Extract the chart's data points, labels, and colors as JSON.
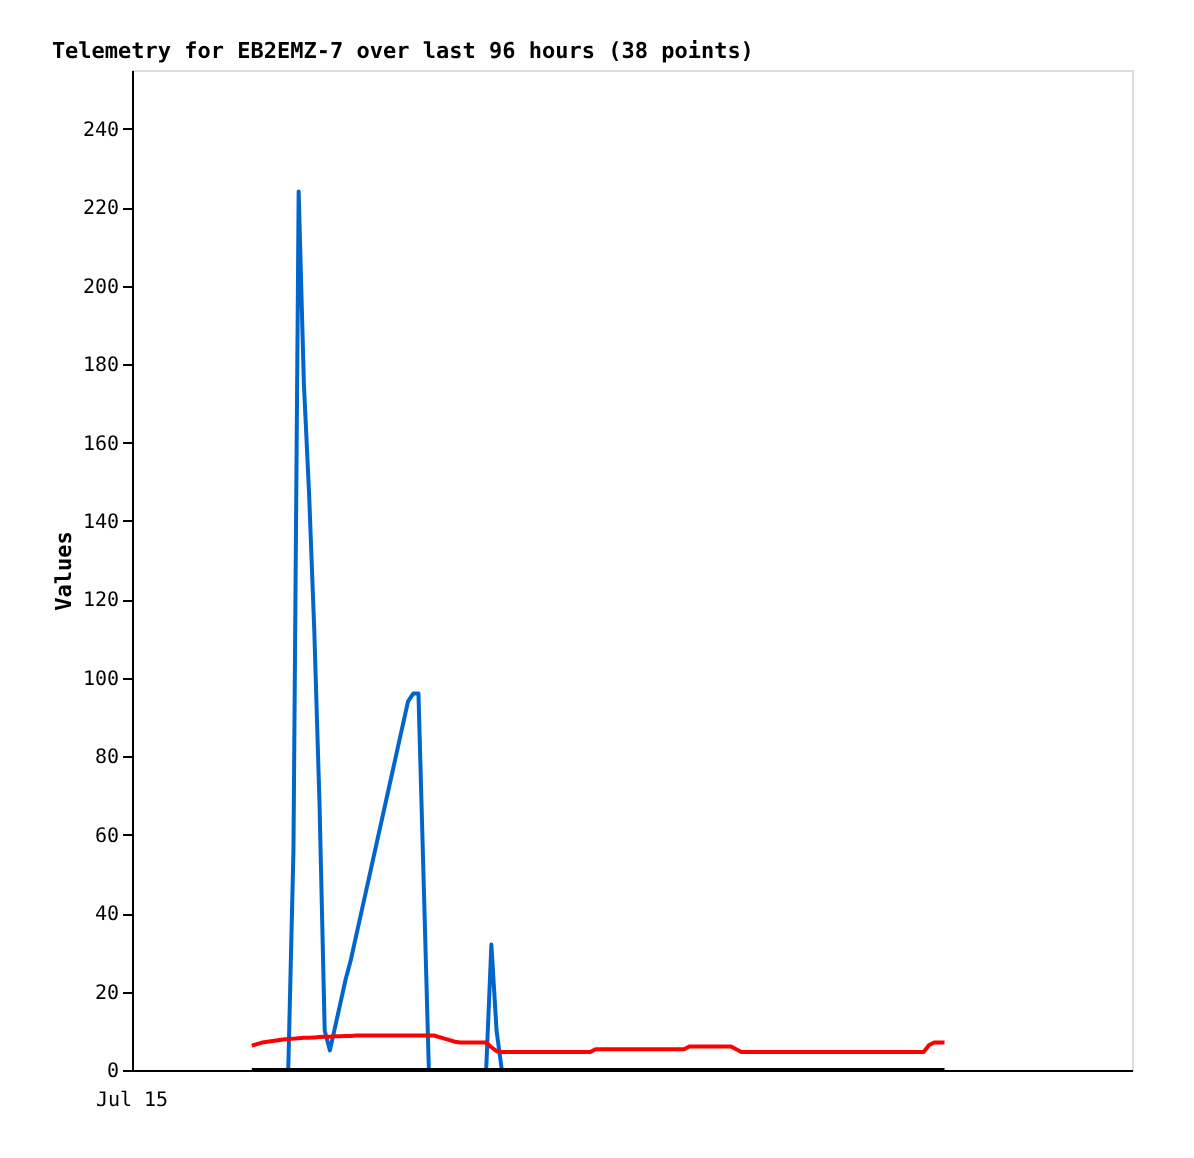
{
  "chart_data": {
    "type": "line",
    "title": "Telemetry for EB2EMZ-7 over last 96 hours (38 points)",
    "ylabel": "Values",
    "annotations": [
      "Jul 15"
    ],
    "categories": [
      null,
      null,
      null,
      null,
      null,
      null,
      null,
      null,
      null,
      null,
      null,
      null,
      null,
      null,
      null,
      null,
      null,
      null,
      null,
      null,
      null,
      null,
      null,
      null,
      null,
      null,
      null,
      null,
      null,
      null,
      null,
      null,
      null,
      null,
      null,
      null,
      null,
      null,
      null,
      null,
      null,
      null,
      null,
      null,
      null,
      null,
      null,
      null,
      null,
      null,
      null,
      null,
      null,
      null,
      null,
      null,
      null,
      null,
      null,
      null,
      null,
      null,
      null,
      null,
      null,
      null,
      null,
      null,
      null,
      null,
      null,
      null,
      null,
      null,
      null,
      null,
      null,
      null,
      null,
      null,
      null,
      null,
      null,
      null,
      null,
      null,
      null,
      null,
      null,
      null,
      null,
      null,
      null,
      null,
      null,
      null,
      null,
      null,
      null,
      null,
      null,
      null,
      null,
      null,
      null,
      null,
      null,
      null,
      null,
      null,
      null,
      null,
      null,
      null,
      null,
      null,
      null,
      null,
      null,
      null,
      null,
      null,
      null,
      null,
      null,
      null,
      null,
      null,
      null,
      null,
      null,
      null,
      null,
      null,
      null,
      null,
      null,
      null,
      null,
      null,
      null,
      null,
      null,
      null,
      null,
      null,
      null,
      null,
      null,
      null,
      null,
      null,
      null,
      null,
      null,
      null,
      null,
      null,
      null,
      null,
      null,
      null,
      null,
      null,
      null,
      null,
      null,
      null,
      null,
      null,
      null,
      null,
      null,
      null,
      null,
      null,
      null,
      null,
      null,
      null,
      null,
      null,
      null,
      null,
      null,
      null,
      null,
      null,
      null,
      null,
      null,
      null,
      null
    ],
    "ylim": [
      0,
      255
    ],
    "yticks": [
      0,
      20,
      40,
      60,
      80,
      100,
      120,
      140,
      160,
      180,
      200,
      220,
      240
    ],
    "grid": false,
    "legend": false,
    "marker": "none",
    "line_style": "solid",
    "series": [
      {
        "color": "#0066cc",
        "values": [
          null,
          null,
          null,
          null,
          null,
          null,
          null,
          null,
          null,
          null,
          null,
          null,
          null,
          null,
          null,
          null,
          null,
          null,
          null,
          null,
          null,
          null,
          null,
          null,
          null,
          null,
          null,
          null,
          null,
          null,
          0,
          56,
          224,
          175,
          147,
          112,
          68,
          10,
          5,
          11,
          17,
          23,
          28,
          34,
          40,
          46,
          52,
          58,
          64,
          70,
          76,
          82,
          88,
          94,
          96,
          96,
          48,
          0,
          0,
          0,
          0,
          0,
          0,
          0,
          0,
          0,
          0,
          0,
          0,
          32,
          10,
          0,
          null,
          null,
          null,
          null,
          null,
          null,
          null,
          null,
          null,
          null,
          null,
          null,
          null,
          null,
          null,
          null,
          null,
          null,
          null,
          null,
          null,
          null,
          null,
          null,
          null,
          null,
          null,
          null,
          null,
          null,
          null,
          null,
          null,
          null,
          null,
          null,
          null,
          null,
          null,
          null,
          null,
          null,
          null,
          null,
          null,
          null,
          null,
          null,
          null,
          null,
          null,
          null,
          null,
          null,
          null,
          null,
          null,
          null,
          null,
          null,
          null,
          null,
          null,
          null,
          null,
          null,
          null,
          null,
          null,
          null,
          null,
          null,
          null,
          null,
          null,
          null,
          null,
          null,
          null,
          null,
          null,
          null,
          null,
          null,
          null,
          null,
          null,
          null,
          null,
          null,
          null,
          null,
          null,
          null,
          null,
          null,
          null,
          null,
          null,
          null,
          null,
          null,
          null,
          null,
          null,
          null,
          null,
          null,
          null,
          null,
          null,
          null,
          null,
          null,
          null,
          null,
          null,
          null,
          null,
          null,
          null
        ]
      },
      {
        "color": "#ff0000",
        "values": [
          null,
          null,
          null,
          null,
          null,
          null,
          null,
          null,
          null,
          null,
          null,
          null,
          null,
          null,
          null,
          null,
          null,
          null,
          null,
          null,
          null,
          null,
          null,
          6.2,
          6.6,
          7,
          7.2,
          7.4,
          7.6,
          7.8,
          7.9,
          8.0,
          8.1,
          8.2,
          8.2,
          8.3,
          8.4,
          8.5,
          8.5,
          8.6,
          8.6,
          8.7,
          8.7,
          8.8,
          8.8,
          8.8,
          8.8,
          8.8,
          8.8,
          8.8,
          8.8,
          8.8,
          8.8,
          8.8,
          8.8,
          8.8,
          8.8,
          8.8,
          8.8,
          8.4,
          8.0,
          7.6,
          7.2,
          7,
          7,
          7,
          7,
          7,
          7,
          5.8,
          4.8,
          4.6,
          4.6,
          4.6,
          4.6,
          4.6,
          4.6,
          4.6,
          4.6,
          4.6,
          4.6,
          4.6,
          4.6,
          4.6,
          4.6,
          4.6,
          4.6,
          4.6,
          4.6,
          5.3,
          5.3,
          5.3,
          5.3,
          5.3,
          5.3,
          5.3,
          5.3,
          5.3,
          5.3,
          5.3,
          5.3,
          5.3,
          5.3,
          5.3,
          5.3,
          5.3,
          5.3,
          6.0,
          6.0,
          6.0,
          6.0,
          6.0,
          6.0,
          6.0,
          6.0,
          6.0,
          5.3,
          4.6,
          4.6,
          4.6,
          4.6,
          4.6,
          4.6,
          4.6,
          4.6,
          4.6,
          4.6,
          4.6,
          4.6,
          4.6,
          4.6,
          4.6,
          4.6,
          4.6,
          4.6,
          4.6,
          4.6,
          4.6,
          4.6,
          4.6,
          4.6,
          4.6,
          4.6,
          4.6,
          4.6,
          4.6,
          4.6,
          4.6,
          4.6,
          4.6,
          4.6,
          4.6,
          4.6,
          6.3,
          7,
          7,
          7,
          null,
          null,
          null,
          null,
          null,
          null,
          null,
          null,
          null,
          null,
          null,
          null,
          null,
          null,
          null,
          null,
          null,
          null,
          null,
          null,
          null,
          null,
          null,
          null,
          null,
          null,
          null,
          null,
          null,
          null,
          null,
          null,
          null,
          null,
          null,
          null
        ]
      },
      {
        "color": "#000000",
        "values": [
          null,
          null,
          null,
          null,
          null,
          null,
          null,
          null,
          null,
          null,
          null,
          null,
          null,
          null,
          null,
          null,
          null,
          null,
          null,
          null,
          null,
          null,
          null,
          0,
          0,
          0,
          0,
          0,
          0,
          0,
          0,
          0,
          0,
          0,
          0,
          0,
          0,
          0,
          0,
          0,
          0,
          0,
          0,
          0,
          0,
          0,
          0,
          0,
          0,
          0,
          0,
          0,
          0,
          0,
          0,
          0,
          0,
          0,
          0,
          0,
          0,
          0,
          0,
          0,
          0,
          0,
          0,
          0,
          0,
          0,
          0,
          0,
          0,
          0,
          0,
          0,
          0,
          0,
          0,
          0,
          0,
          0,
          0,
          0,
          0,
          0,
          0,
          0,
          0,
          0,
          0,
          0,
          0,
          0,
          0,
          0,
          0,
          0,
          0,
          0,
          0,
          0,
          0,
          0,
          0,
          0,
          0,
          0,
          0,
          0,
          0,
          0,
          0,
          0,
          0,
          0,
          0,
          0,
          0,
          0,
          0,
          0,
          0,
          0,
          0,
          0,
          0,
          0,
          0,
          0,
          0,
          0,
          0,
          0,
          0,
          0,
          0,
          0,
          0,
          0,
          0,
          0,
          0,
          0,
          0,
          0,
          0,
          0,
          0,
          0,
          0,
          0,
          0,
          0,
          0,
          0,
          0,
          null,
          null,
          null,
          null,
          null,
          null,
          null,
          null,
          null,
          null,
          null,
          null,
          null,
          null,
          null,
          null,
          null,
          null,
          null,
          null,
          null,
          null,
          null,
          null,
          null,
          null,
          null,
          null,
          null,
          null,
          null,
          null,
          null,
          null,
          null,
          null
        ]
      }
    ]
  }
}
